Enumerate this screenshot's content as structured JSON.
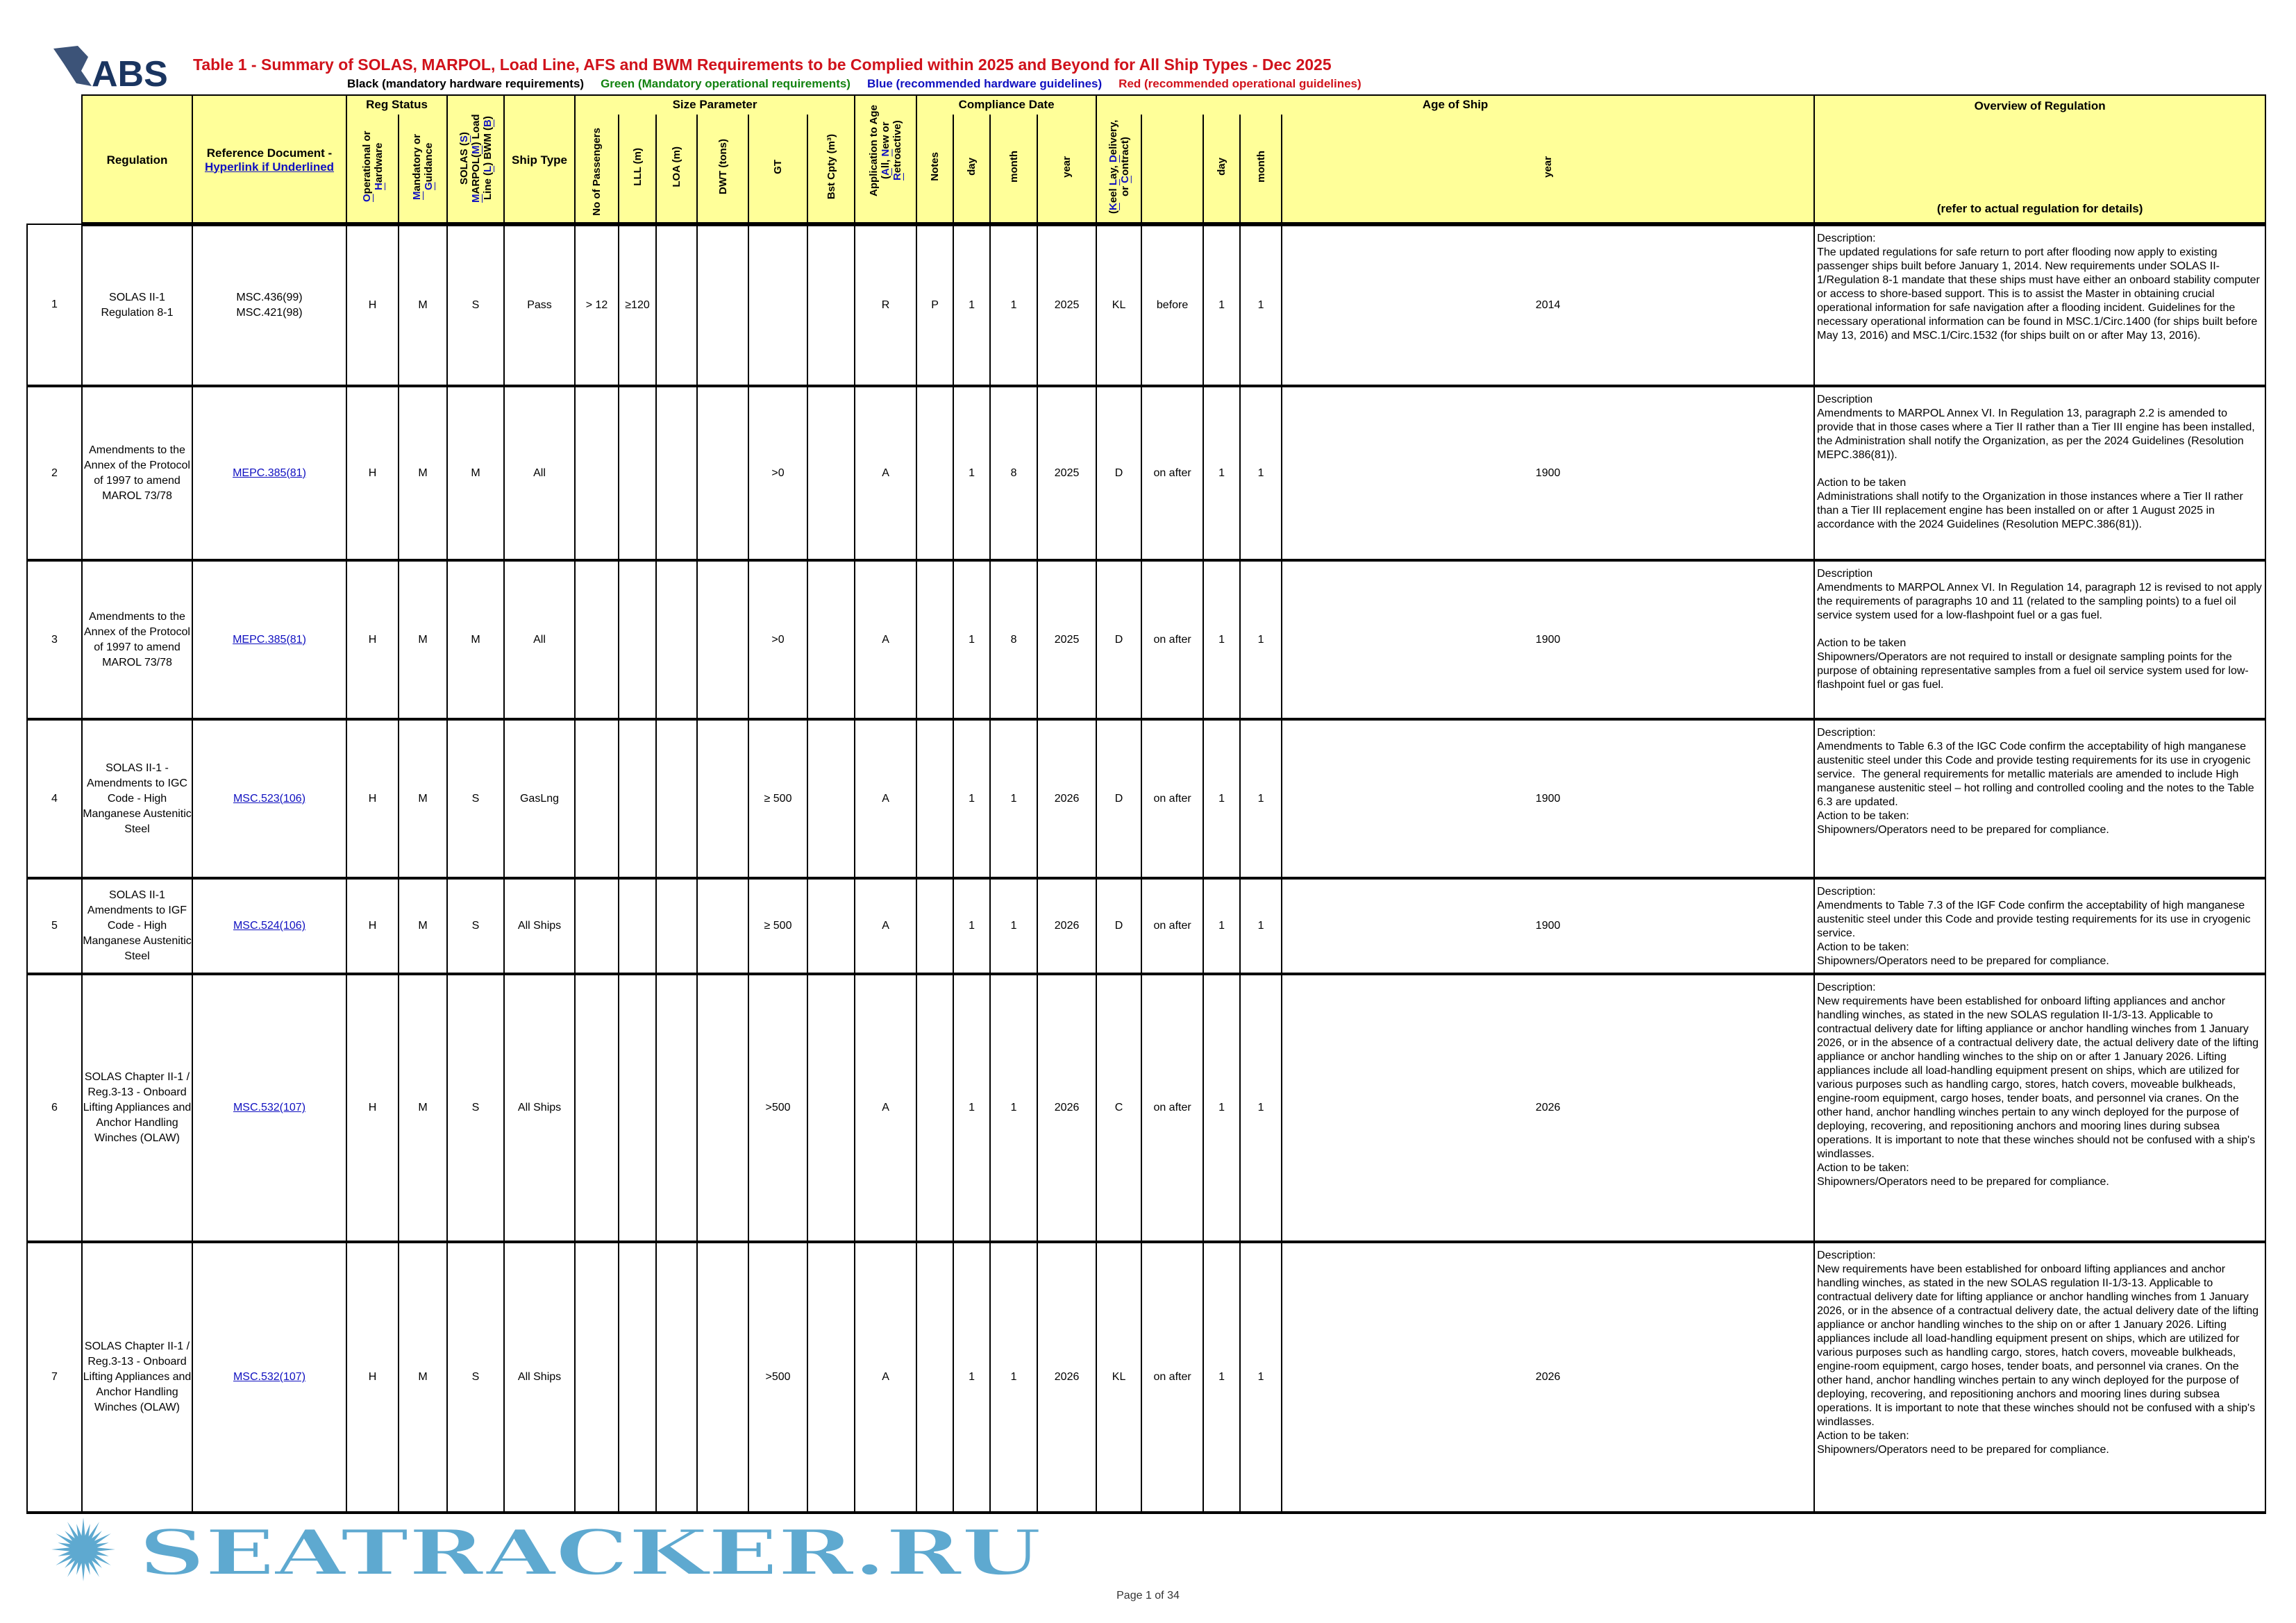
{
  "logo": {
    "text": "ABS",
    "color": "#1a3560"
  },
  "title": "Table 1 - Summary of SOLAS, MARPOL, Load Line, AFS and BWM Requirements to be Complied within 2025 and Beyond for All Ship Types - Dec 2025",
  "legend": [
    {
      "text": "Black (mandatory hardware requirements)",
      "color": "#000000"
    },
    {
      "text": "Green (Mandatory operational requirements)",
      "color": "#11820f"
    },
    {
      "text": "Blue (recommended hardware guidelines)",
      "color": "#1010c0"
    },
    {
      "text": "Red (recommended operational guidelines)",
      "color": "#d0121b"
    }
  ],
  "groups": {
    "reg_status": "Reg Status",
    "size": "Size Parameter",
    "compliance": "Compliance Date",
    "age": "Age of Ship",
    "overview": "Overview of Regulation",
    "overview_note": "(refer to actual regulation for details)"
  },
  "headers": {
    "regulation": "Regulation",
    "ref_doc": "Reference Document -",
    "ref_doc_link": "Hyperlink if Underlined",
    "op_hw": [
      {
        "t": "O",
        "h": 1
      },
      {
        "t": "perational or "
      },
      {
        "t": "H",
        "h": 1
      },
      {
        "t": "ardware"
      }
    ],
    "mand_guid": [
      {
        "t": "M",
        "h": 1
      },
      {
        "t": "andatory or "
      },
      {
        "t": "G",
        "h": 1
      },
      {
        "t": "uidance"
      }
    ],
    "conv": [
      {
        "t": "SOLAS ("
      },
      {
        "t": "S",
        "h": 1
      },
      {
        "t": ") "
      },
      {
        "t": "M",
        "h": 1
      },
      {
        "t": "ARPOL("
      },
      {
        "t": "M",
        "h": 1
      },
      {
        "t": ") Load Line ("
      },
      {
        "t": "L",
        "h": 1
      },
      {
        "t": ") BWM ("
      },
      {
        "t": "B",
        "h": 1
      },
      {
        "t": ")"
      }
    ],
    "ship_type": "Ship Type",
    "passengers": "No of Passengers",
    "lll": "LLL (m)",
    "loa": "LOA (m)",
    "dwt": "DWT (tons)",
    "gt": "GT",
    "bst": "Bst Cpty (m³)",
    "app": [
      {
        "t": "Application to Age ("
      },
      {
        "t": "A",
        "h": 1
      },
      {
        "t": "ll, "
      },
      {
        "t": "N",
        "h": 1
      },
      {
        "t": "ew or "
      },
      {
        "t": "R",
        "h": 1
      },
      {
        "t": "etroactive)"
      }
    ],
    "notes": "Notes",
    "day": "day",
    "month": "month",
    "year": "year",
    "kld": [
      {
        "t": "("
      },
      {
        "t": "K",
        "h": 1
      },
      {
        "t": "eel "
      },
      {
        "t": "L",
        "h": 1
      },
      {
        "t": "ay, "
      },
      {
        "t": "D",
        "h": 1
      },
      {
        "t": "elivery, or "
      },
      {
        "t": "C",
        "h": 1
      },
      {
        "t": "ontract)"
      }
    ],
    "age_day": "day",
    "age_month": "month",
    "age_year": "year"
  },
  "rows": [
    {
      "no": "1",
      "regulation": "SOLAS II-1 Regulation 8-1",
      "ref": [
        "MSC.436(99)",
        "MSC.421(98)"
      ],
      "ref_link": false,
      "oh": "H",
      "mg": "M",
      "conv": "S",
      "ship": "Pass",
      "pass": "> 12",
      "lll": "≥120",
      "loa": "",
      "dwt": "",
      "gt": "",
      "bst": "",
      "app": "R",
      "notes": "P",
      "day": "1",
      "month": "1",
      "year": "2025",
      "kld": "KL",
      "rel": "before",
      "aday": "1",
      "amonth": "1",
      "ayear": "2014",
      "overview": "Description:\nThe updated regulations for safe return to port after flooding now apply to existing passenger ships built before January 1, 2014. New requirements under SOLAS II-1/Regulation 8-1 mandate that these ships must have either an onboard stability computer or access to shore-based support. This is to assist the Master in obtaining crucial operational information for safe navigation after a flooding incident. Guidelines for the necessary operational information can be found in MSC.1/Circ.1400 (for ships built before May 13, 2016) and MSC.1/Circ.1532 (for ships built on or after May 13, 2016)."
    },
    {
      "no": "2",
      "regulation": "Amendments to the Annex of the Protocol of 1997 to amend MAROL 73/78",
      "ref": [
        "MEPC.385(81)"
      ],
      "ref_link": true,
      "oh": "H",
      "mg": "M",
      "conv": "M",
      "ship": "All",
      "pass": "",
      "lll": "",
      "loa": "",
      "dwt": "",
      "gt": ">0",
      "bst": "",
      "app": "A",
      "notes": "",
      "day": "1",
      "month": "8",
      "year": "2025",
      "kld": "D",
      "rel": "on after",
      "aday": "1",
      "amonth": "1",
      "ayear": "1900",
      "overview": "Description\nAmendments to MARPOL Annex VI. In Regulation 13, paragraph 2.2 is amended to provide that in those cases where a Tier II rather than a Tier III engine has been installed, the Administration shall notify the Organization, as per the 2024 Guidelines (Resolution MEPC.386(81)).\n\nAction to be taken\nAdministrations shall notify to the Organization in those instances where a Tier II rather than a Tier III replacement engine has been installed on or after 1 August 2025 in accordance with the 2024 Guidelines (Resolution MEPC.386(81))."
    },
    {
      "no": "3",
      "regulation": "Amendments to the Annex of the Protocol of 1997 to amend MAROL 73/78",
      "ref": [
        "MEPC.385(81)"
      ],
      "ref_link": true,
      "oh": "H",
      "mg": "M",
      "conv": "M",
      "ship": "All",
      "pass": "",
      "lll": "",
      "loa": "",
      "dwt": "",
      "gt": ">0",
      "bst": "",
      "app": "A",
      "notes": "",
      "day": "1",
      "month": "8",
      "year": "2025",
      "kld": "D",
      "rel": "on after",
      "aday": "1",
      "amonth": "1",
      "ayear": "1900",
      "overview": "Description\nAmendments to MARPOL Annex VI. In Regulation 14, paragraph 12 is revised to not apply the requirements of paragraphs 10 and 11 (related to the sampling points) to a fuel oil service system used for a low-flashpoint fuel or a gas fuel.\n\nAction to be taken\nShipowners/Operators are not required to install or designate sampling points for the purpose of obtaining representative samples from a fuel oil service system used for low-flashpoint fuel or gas fuel."
    },
    {
      "no": "4",
      "regulation": "SOLAS II-1 - Amendments to IGC Code - High Manganese Austenitic Steel",
      "ref": [
        "MSC.523(106)"
      ],
      "ref_link": true,
      "oh": "H",
      "mg": "M",
      "conv": "S",
      "ship": "GasLng",
      "pass": "",
      "lll": "",
      "loa": "",
      "dwt": "",
      "gt": "≥ 500",
      "bst": "",
      "app": "A",
      "notes": "",
      "day": "1",
      "month": "1",
      "year": "2026",
      "kld": "D",
      "rel": "on after",
      "aday": "1",
      "amonth": "1",
      "ayear": "1900",
      "overview": "Description:\nAmendments to Table 6.3 of the IGC Code confirm the acceptability of high manganese austenitic steel under this Code and provide testing requirements for its use in cryogenic service.  The general requirements for metallic materials are amended to include High manganese austenitic steel – hot rolling and controlled cooling and the notes to the Table 6.3 are updated.\nAction to be taken:\nShipowners/Operators need to be prepared for compliance."
    },
    {
      "no": "5",
      "regulation": "SOLAS II-1 Amendments to IGF Code - High Manganese Austenitic Steel",
      "ref": [
        "MSC.524(106)"
      ],
      "ref_link": true,
      "oh": "H",
      "mg": "M",
      "conv": "S",
      "ship": "All Ships",
      "pass": "",
      "lll": "",
      "loa": "",
      "dwt": "",
      "gt": "≥ 500",
      "bst": "",
      "app": "A",
      "notes": "",
      "day": "1",
      "month": "1",
      "year": "2026",
      "kld": "D",
      "rel": "on after",
      "aday": "1",
      "amonth": "1",
      "ayear": "1900",
      "overview": "Description:\nAmendments to Table 7.3 of the IGF Code confirm the acceptability of high manganese austenitic steel under this Code and provide testing requirements for its use in cryogenic service.\nAction to be taken:\nShipowners/Operators need to be prepared for compliance."
    },
    {
      "no": "6",
      "regulation": "SOLAS Chapter II-1 / Reg.3-13 - Onboard Lifting Appliances and Anchor Handling Winches (OLAW)",
      "ref": [
        "MSC.532(107)"
      ],
      "ref_link": true,
      "oh": "H",
      "mg": "M",
      "conv": "S",
      "ship": "All Ships",
      "pass": "",
      "lll": "",
      "loa": "",
      "dwt": "",
      "gt": ">500",
      "bst": "",
      "app": "A",
      "notes": "",
      "day": "1",
      "month": "1",
      "year": "2026",
      "kld": "C",
      "rel": "on after",
      "aday": "1",
      "amonth": "1",
      "ayear": "2026",
      "overview": "Description:\nNew requirements have been established for onboard lifting appliances and anchor handling winches, as stated in the new SOLAS regulation II-1/3-13. Applicable to contractual delivery date for lifting appliance or anchor handling winches from 1 January 2026, or in the absence of a contractual delivery date, the actual delivery date of the lifting appliance or anchor handling winches to the ship on or after 1 January 2026. Lifting appliances include all load-handling equipment present on ships, which are utilized for various purposes such as handling cargo, stores, hatch covers, moveable bulkheads, engine-room equipment, cargo hoses, tender boats, and personnel via cranes. On the other hand, anchor handling winches pertain to any winch deployed for the purpose of deploying, recovering, and repositioning anchors and mooring lines during subsea operations. It is important to note that these winches should not be confused with a ship's windlasses.\nAction to be taken:\nShipowners/Operators need to be prepared for compliance."
    },
    {
      "no": "7",
      "regulation": "SOLAS Chapter II-1 / Reg.3-13 - Onboard Lifting Appliances and Anchor Handling Winches (OLAW)",
      "ref": [
        "MSC.532(107)"
      ],
      "ref_link": true,
      "oh": "H",
      "mg": "M",
      "conv": "S",
      "ship": "All Ships",
      "pass": "",
      "lll": "",
      "loa": "",
      "dwt": "",
      "gt": ">500",
      "bst": "",
      "app": "A",
      "notes": "",
      "day": "1",
      "month": "1",
      "year": "2026",
      "kld": "KL",
      "rel": "on after",
      "aday": "1",
      "amonth": "1",
      "ayear": "2026",
      "overview": "Description:\nNew requirements have been established for onboard lifting appliances and anchor handling winches, as stated in the new SOLAS regulation II-1/3-13. Applicable to contractual delivery date for lifting appliance or anchor handling winches from 1 January 2026, or in the absence of a contractual delivery date, the actual delivery date of the lifting appliance or anchor handling winches to the ship on or after 1 January 2026. Lifting appliances include all load-handling equipment present on ships, which are utilized for various purposes such as handling cargo, stores, hatch covers, moveable bulkheads, engine-room equipment, cargo hoses, tender boats, and personnel via cranes. On the other hand, anchor handling winches pertain to any winch deployed for the purpose of deploying, recovering, and repositioning anchors and mooring lines during subsea operations. It is important to note that these winches should not be confused with a ship's windlasses.\nAction to be taken:\nShipowners/Operators need to be prepared for compliance."
    }
  ],
  "footer": {
    "page": "Page 1 of 34"
  },
  "watermark": {
    "text": "SEATRACKER.RU",
    "color": "#5ea9d0"
  }
}
